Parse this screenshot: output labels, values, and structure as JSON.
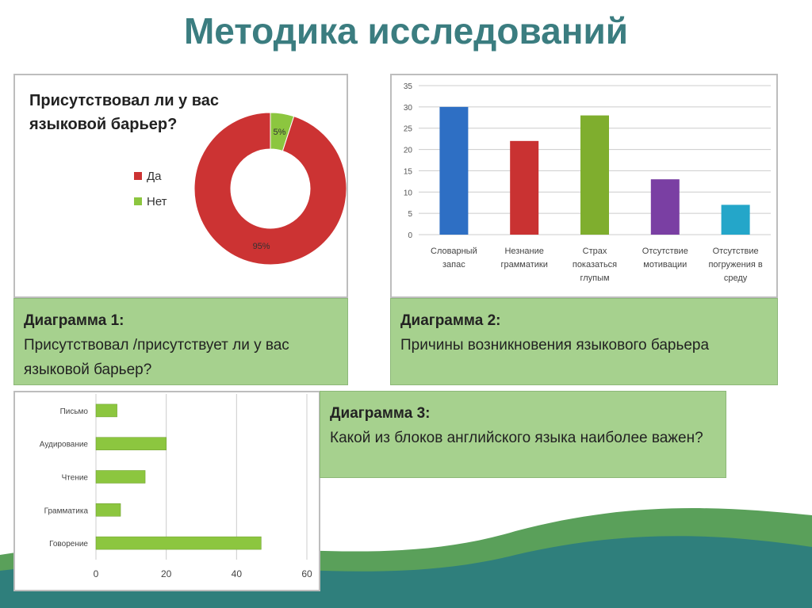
{
  "title": "Методика исследований",
  "captions": [
    {
      "head": "Диаграмма 1:",
      "text": "Присутствовал /присутствует ли у вас языковой барьер?"
    },
    {
      "head": "Диаграмма 2:",
      "text": "Причины возникновения языкового барьера"
    },
    {
      "head": "Диаграмма 3:",
      "text": "Какой из блоков английского языка наиболее важен?"
    }
  ],
  "chart_data": [
    {
      "type": "pie",
      "title": "Присутствовал ли у вас языковой барьер?",
      "categories": [
        "Да",
        "Нет"
      ],
      "values": [
        95,
        5
      ],
      "labels": [
        "95%",
        "5%"
      ],
      "colors": [
        "#cc3333",
        "#8cc63f"
      ],
      "legend": "left"
    },
    {
      "type": "bar",
      "categories": [
        "Словарный запас",
        "Незнание грамматики",
        "Страх показаться глупым",
        "Отсутствие мотивации",
        "Отсутствие погружения в среду"
      ],
      "values": [
        30,
        22,
        28,
        13,
        7
      ],
      "colors": [
        "#2e6fc4",
        "#c93232",
        "#7fae2e",
        "#7a3fa3",
        "#24a6c9"
      ],
      "ylim": [
        0,
        35
      ],
      "yticks": [
        "0",
        "5",
        "10",
        "15",
        "20",
        "25",
        "30",
        "35"
      ],
      "grid": true
    },
    {
      "type": "bar",
      "orientation": "horizontal",
      "categories": [
        "Письмо",
        "Аудирование",
        "Чтение",
        "Грамматика",
        "Говорение"
      ],
      "values": [
        6,
        20,
        14,
        7,
        47
      ],
      "color": "#8cc63f",
      "xlim": [
        0,
        60
      ],
      "xticks": [
        "0",
        "20",
        "40",
        "60"
      ],
      "grid": true
    }
  ]
}
